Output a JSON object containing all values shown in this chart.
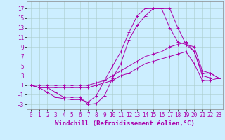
{
  "xlabel": "Windchill (Refroidissement éolien,°C)",
  "background_color": "#cceeff",
  "grid_color": "#aacccc",
  "line_color": "#aa00aa",
  "hours": [
    0,
    1,
    2,
    3,
    4,
    5,
    6,
    7,
    8,
    9,
    10,
    11,
    12,
    13,
    14,
    15,
    16,
    17,
    18,
    19,
    20,
    21,
    22,
    23
  ],
  "line1": [
    1,
    0.5,
    0.5,
    -0.5,
    -1.5,
    -1.5,
    -1.5,
    -3,
    -2.8,
    -1.2,
    2.5,
    5.5,
    10.5,
    13.5,
    15.5,
    17,
    17,
    17,
    13,
    9.5,
    9,
    4,
    3.5,
    2.5
  ],
  "line2": [
    1,
    0.5,
    -0.5,
    -1.5,
    -1.8,
    -2,
    -2,
    -2.5,
    -1.2,
    2,
    5,
    8,
    12,
    15.5,
    17,
    17,
    17,
    13,
    10,
    9.5,
    8,
    3.5,
    3.5,
    2.5
  ],
  "line3": [
    1,
    1,
    1,
    1,
    1,
    1,
    1,
    1,
    1.5,
    2,
    3,
    4,
    5,
    6,
    7,
    7.5,
    8,
    9,
    9.5,
    10,
    8,
    3,
    2.5,
    2.5
  ],
  "line4": [
    1,
    0.5,
    0.5,
    0.5,
    0.5,
    0.5,
    0.5,
    0.5,
    1,
    1.5,
    2,
    3,
    3.5,
    4.5,
    5.5,
    6,
    6.5,
    7,
    7.5,
    8,
    5.5,
    2,
    2,
    2.5
  ],
  "ylim": [
    -4,
    18.5
  ],
  "yticks": [
    -3,
    -1,
    1,
    3,
    5,
    7,
    9,
    11,
    13,
    15,
    17
  ],
  "xticks": [
    0,
    1,
    2,
    3,
    4,
    5,
    6,
    7,
    8,
    9,
    10,
    11,
    12,
    13,
    14,
    15,
    16,
    17,
    18,
    19,
    20,
    21,
    22,
    23
  ],
  "xlabel_fontsize": 6.5,
  "tick_fontsize": 5.5,
  "figwidth": 3.2,
  "figheight": 2.0,
  "dpi": 100
}
